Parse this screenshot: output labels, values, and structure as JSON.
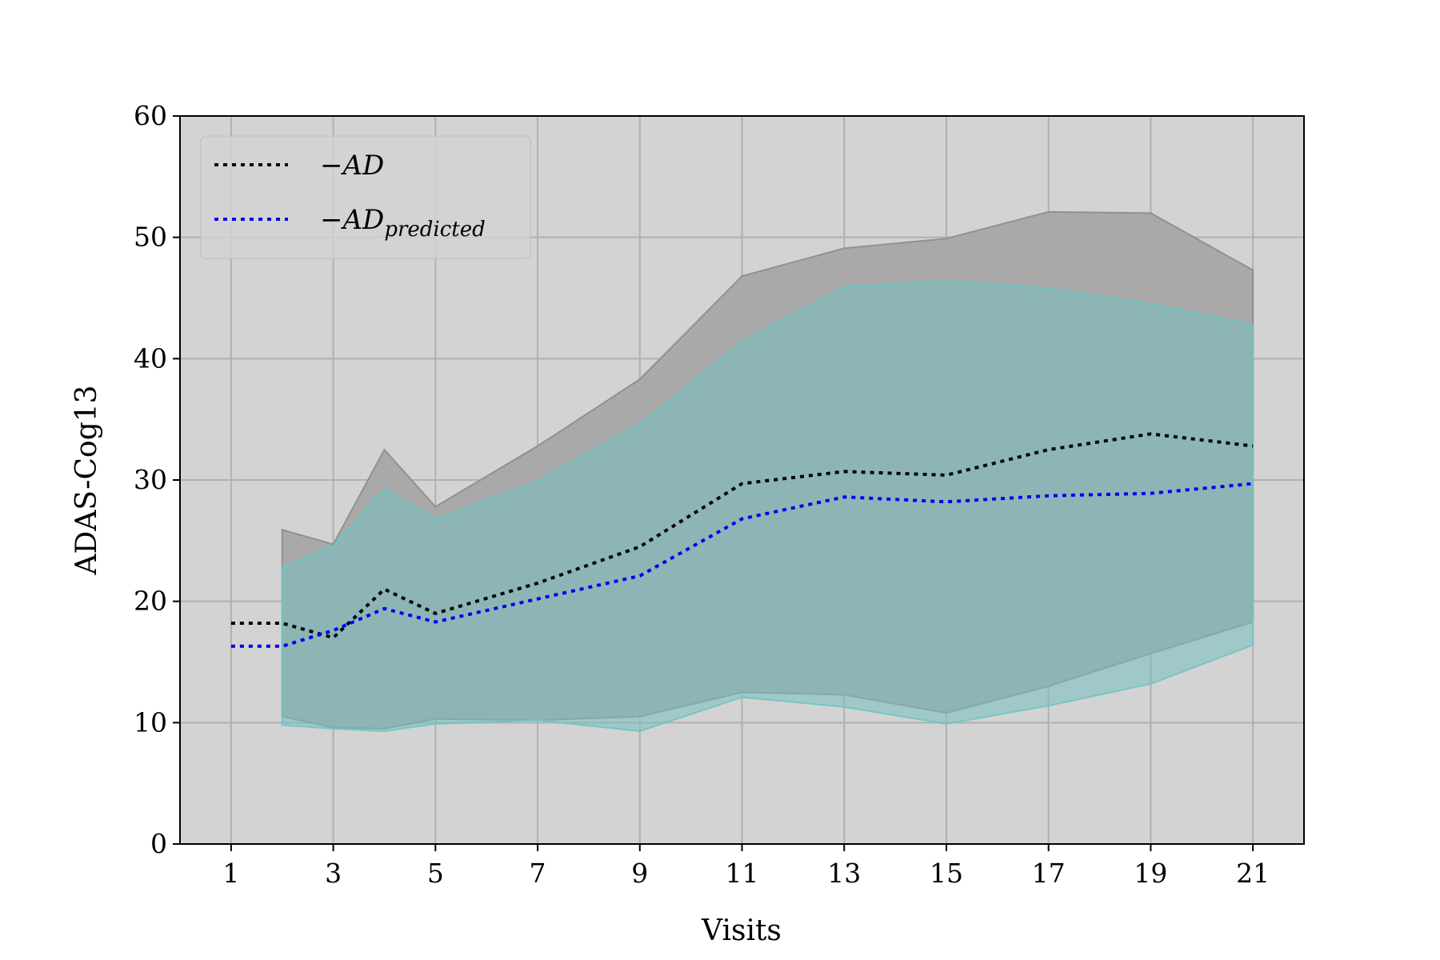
{
  "chart_data": {
    "type": "line",
    "xlabel": "Visits",
    "ylabel": "ADAS-Cog13",
    "xlim": [
      0,
      22
    ],
    "ylim": [
      0,
      60
    ],
    "x_ticks": [
      1,
      3,
      5,
      7,
      9,
      11,
      13,
      15,
      17,
      19,
      21
    ],
    "y_ticks": [
      0,
      10,
      20,
      30,
      40,
      50,
      60
    ],
    "grid": true,
    "legend_position": "top-left",
    "colors": {
      "background": "#d3d3d3",
      "grid": "#b0b0b0",
      "ad": "#000000",
      "ad_predicted": "#0000ee",
      "ad_band": "#a9a9a9",
      "predicted_band": "#79c0c0"
    },
    "series": [
      {
        "key": "ad",
        "name": "−AD",
        "style": "dotted",
        "x": [
          1,
          2,
          3,
          4,
          5,
          7,
          9,
          11,
          13,
          15,
          17,
          19,
          21
        ],
        "y": [
          18.2,
          18.2,
          17.0,
          21.0,
          19.0,
          21.5,
          24.5,
          29.7,
          30.7,
          30.4,
          32.5,
          33.8,
          32.8
        ]
      },
      {
        "key": "ad_predicted",
        "name": "−AD",
        "name_sub": "predicted",
        "style": "dotted",
        "x": [
          1,
          2,
          3,
          4,
          5,
          7,
          9,
          11,
          13,
          15,
          17,
          19,
          21
        ],
        "y": [
          16.3,
          16.3,
          17.6,
          19.4,
          18.3,
          20.2,
          22.1,
          26.8,
          28.6,
          28.2,
          28.7,
          28.9,
          29.7
        ]
      }
    ],
    "bands": [
      {
        "key": "ad_band",
        "x": [
          2,
          3,
          4,
          5,
          7,
          9,
          11,
          13,
          15,
          17,
          19,
          21
        ],
        "upper": [
          25.9,
          24.7,
          32.5,
          27.8,
          32.8,
          38.3,
          46.8,
          49.1,
          49.9,
          52.1,
          52.0,
          47.3
        ],
        "lower": [
          10.5,
          9.6,
          9.5,
          10.3,
          10.2,
          10.5,
          12.5,
          12.3,
          10.8,
          13.0,
          15.7,
          18.3
        ]
      },
      {
        "key": "predicted_band",
        "x": [
          2,
          3,
          4,
          5,
          7,
          9,
          11,
          13,
          15,
          17,
          19,
          21
        ],
        "upper": [
          22.8,
          24.6,
          29.3,
          26.8,
          29.9,
          34.6,
          41.4,
          45.9,
          46.4,
          45.8,
          44.5,
          42.8
        ],
        "lower": [
          9.8,
          9.5,
          9.3,
          9.9,
          10.2,
          9.3,
          12.1,
          11.3,
          9.9,
          11.4,
          13.2,
          16.4
        ]
      }
    ]
  }
}
